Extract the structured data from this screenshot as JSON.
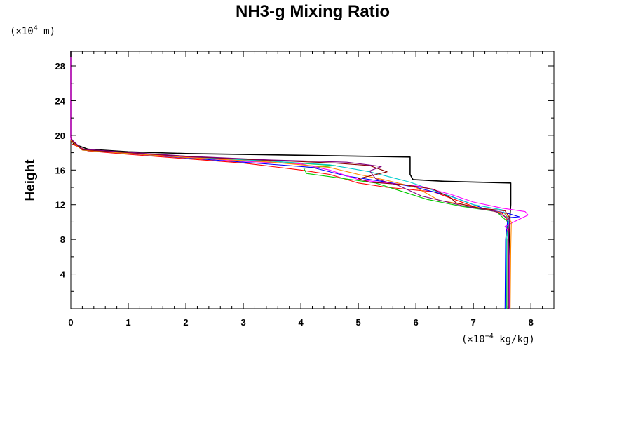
{
  "chart_data": {
    "type": "line",
    "title": "NH3-g Mixing Ratio",
    "ylabel": "Height",
    "y_unit": {
      "prefix": "(×10",
      "exp": "4",
      "suffix": " m)"
    },
    "x_unit": {
      "prefix": "(×10",
      "exp": "−4",
      "suffix": " kg/kg)"
    },
    "xlim": [
      0,
      8.4
    ],
    "ylim": [
      0,
      29.7
    ],
    "x_ticks": [
      "0",
      "1",
      "2",
      "3",
      "4",
      "5",
      "6",
      "7",
      "8"
    ],
    "y_ticks": [
      "4",
      "8",
      "12",
      "16",
      "20",
      "24",
      "28"
    ],
    "grid": false,
    "series": [
      {
        "color": "#000000",
        "points": [
          [
            7.62,
            0
          ],
          [
            7.62,
            7
          ],
          [
            7.63,
            10
          ],
          [
            7.65,
            12
          ],
          [
            7.65,
            14.5
          ],
          [
            6.5,
            14.7
          ],
          [
            5.95,
            14.9
          ],
          [
            5.9,
            15.5
          ],
          [
            5.9,
            17.5
          ],
          [
            4,
            17.7
          ],
          [
            2,
            17.9
          ],
          [
            1,
            18.1
          ],
          [
            0.3,
            18.4
          ],
          [
            0.05,
            19
          ],
          [
            0,
            19.8
          ],
          [
            0,
            29.7
          ]
        ]
      },
      {
        "color": "#ff0000",
        "points": [
          [
            7.6,
            0
          ],
          [
            7.6,
            8
          ],
          [
            7.62,
            10
          ],
          [
            7.5,
            11
          ],
          [
            7,
            11.8
          ],
          [
            6.3,
            13.5
          ],
          [
            5.5,
            14
          ],
          [
            5,
            14.5
          ],
          [
            4.5,
            15.5
          ],
          [
            4,
            16
          ],
          [
            3,
            16.8
          ],
          [
            2,
            17.3
          ],
          [
            1,
            17.8
          ],
          [
            0.3,
            18.2
          ],
          [
            0.02,
            19
          ],
          [
            0,
            19.8
          ]
        ]
      },
      {
        "color": "#00cc00",
        "points": [
          [
            7.58,
            0
          ],
          [
            7.58,
            8
          ],
          [
            7.6,
            10
          ],
          [
            7.4,
            11.2
          ],
          [
            6.8,
            11.8
          ],
          [
            6.2,
            12.6
          ],
          [
            5.3,
            14.5
          ],
          [
            4.1,
            15.6
          ],
          [
            4.05,
            16.2
          ],
          [
            4.6,
            16.5
          ],
          [
            3.5,
            17
          ],
          [
            2,
            17.6
          ],
          [
            1,
            18
          ],
          [
            0.2,
            18.4
          ],
          [
            0,
            19.5
          ]
        ]
      },
      {
        "color": "#0000ff",
        "points": [
          [
            7.55,
            0
          ],
          [
            7.56,
            8
          ],
          [
            7.6,
            10.5
          ],
          [
            7.8,
            10.6
          ],
          [
            7.6,
            11
          ],
          [
            7.2,
            11.5
          ],
          [
            6.6,
            13
          ],
          [
            6,
            14
          ],
          [
            5.5,
            14.6
          ],
          [
            4.8,
            15.3
          ],
          [
            4.2,
            16.3
          ],
          [
            3,
            16.9
          ],
          [
            2,
            17.4
          ],
          [
            1,
            17.9
          ],
          [
            0.2,
            18.3
          ],
          [
            0,
            19.6
          ]
        ]
      },
      {
        "color": "#00cccc",
        "points": [
          [
            7.57,
            0
          ],
          [
            7.58,
            8
          ],
          [
            7.62,
            10.2
          ],
          [
            7.5,
            11.4
          ],
          [
            7,
            12
          ],
          [
            6.5,
            13.2
          ],
          [
            5.9,
            14.6
          ],
          [
            5.2,
            15.8
          ],
          [
            4.5,
            16.6
          ],
          [
            3.5,
            17
          ],
          [
            2,
            17.5
          ],
          [
            1,
            17.95
          ],
          [
            0.2,
            18.3
          ],
          [
            0,
            19.6
          ]
        ]
      },
      {
        "color": "#ff00ff",
        "points": [
          [
            7.63,
            0
          ],
          [
            7.62,
            6
          ],
          [
            7.6,
            9
          ],
          [
            7.55,
            9.5
          ],
          [
            7.7,
            10
          ],
          [
            7.95,
            10.8
          ],
          [
            7.9,
            11.2
          ],
          [
            7.5,
            11.6
          ],
          [
            7,
            12.3
          ],
          [
            6.6,
            13.2
          ],
          [
            6.1,
            14.1
          ],
          [
            5.5,
            14.5
          ],
          [
            5,
            14.9
          ],
          [
            4.5,
            16
          ],
          [
            4,
            16.7
          ],
          [
            3,
            17
          ],
          [
            2,
            17.5
          ],
          [
            1,
            18
          ],
          [
            0.2,
            18.4
          ],
          [
            0,
            19.5
          ],
          [
            0,
            29.7
          ]
        ]
      },
      {
        "color": "#ff8800",
        "points": [
          [
            7.64,
            0
          ],
          [
            7.65,
            7
          ],
          [
            7.66,
            10
          ],
          [
            7.55,
            11
          ],
          [
            7,
            11.8
          ],
          [
            6.4,
            12.5
          ],
          [
            6,
            14
          ],
          [
            5.5,
            14.8
          ],
          [
            5,
            15.5
          ],
          [
            4.5,
            16.3
          ],
          [
            3.5,
            16.9
          ],
          [
            2,
            17.45
          ],
          [
            1,
            17.9
          ],
          [
            0.2,
            18.3
          ],
          [
            0,
            19.4
          ]
        ]
      },
      {
        "color": "#8b0000",
        "points": [
          [
            7.6,
            0
          ],
          [
            7.6,
            8
          ],
          [
            7.64,
            10.4
          ],
          [
            7.55,
            11.3
          ],
          [
            7.1,
            11.6
          ],
          [
            6.7,
            12.2
          ],
          [
            6.6,
            12.8
          ],
          [
            6.3,
            13.8
          ],
          [
            5.8,
            14.3
          ],
          [
            5.2,
            14.6
          ],
          [
            5,
            15
          ],
          [
            5.5,
            15.8
          ],
          [
            5.2,
            16.5
          ],
          [
            4.6,
            16.8
          ],
          [
            3.5,
            17.1
          ],
          [
            2,
            17.55
          ],
          [
            1,
            18
          ],
          [
            0.2,
            18.35
          ],
          [
            0,
            19.5
          ]
        ]
      },
      {
        "color": "#800080",
        "points": [
          [
            7.62,
            0
          ],
          [
            7.61,
            8
          ],
          [
            7.63,
            10.3
          ],
          [
            7.4,
            11.2
          ],
          [
            6.8,
            11.9
          ],
          [
            6.1,
            13
          ],
          [
            5.7,
            14.2
          ],
          [
            5.3,
            15
          ],
          [
            5.2,
            15.9
          ],
          [
            5.4,
            16.4
          ],
          [
            4.8,
            16.9
          ],
          [
            3.5,
            17.15
          ],
          [
            2,
            17.6
          ],
          [
            1,
            18.05
          ],
          [
            0.2,
            18.4
          ],
          [
            0,
            19.6
          ]
        ]
      }
    ]
  }
}
